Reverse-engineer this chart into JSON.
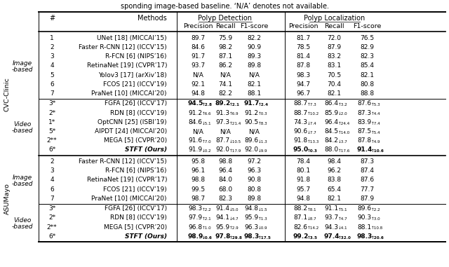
{
  "cvc_image_rows": [
    [
      "1",
      "UNet [18] (MICCAI’15)",
      "89.7",
      "75.9",
      "82.2",
      "81.7",
      "72.0",
      "76.5"
    ],
    [
      "2",
      "Faster R-CNN [12] (ICCV’15)",
      "84.6",
      "98.2",
      "90.9",
      "78.5",
      "87.9",
      "82.9"
    ],
    [
      "3",
      "R-FCN [6] (NIPS’16)",
      "91.7",
      "87.1",
      "89.3",
      "81.4",
      "83.2",
      "82.3"
    ],
    [
      "4",
      "RetinaNet [19] (CVPR’17)",
      "93.7",
      "86.2",
      "89.8",
      "87.8",
      "83.1",
      "85.4"
    ],
    [
      "5",
      "Yolov3 [17] (arXiv’18)",
      "N/A",
      "N/A",
      "N/A",
      "98.3",
      "70.5",
      "82.1"
    ],
    [
      "6",
      "FCOS [21] (ICCV’19)",
      "92.1",
      "74.1",
      "82.1",
      "94.7",
      "70.4",
      "80.8"
    ],
    [
      "7",
      "PraNet [10] (MICCAI’20)",
      "94.8",
      "82.2",
      "88.1",
      "96.7",
      "82.1",
      "88.8"
    ]
  ],
  "cvc_video_rows": [
    [
      "3*",
      "FGFA [26] (ICCV’17)",
      "94.5|2.8|u",
      "89.2|2.1|u",
      "91.7|2.4|u",
      "88.7|7.3|u",
      "86.4|3.2|u",
      "87.6|5.3|u"
    ],
    [
      "2*",
      "RDN [8] (ICCV’19)",
      "91.2|6.6|u",
      "91.3|6.9|u",
      "91.2|0.3|u",
      "88.7|10.2|u",
      "85.9|2.0|d",
      "87.3|4.4|u"
    ],
    [
      "1*",
      "OptCNN [25] (ISBI’19)",
      "84.6|5.1|d",
      "97.3|21.4|u",
      "90.5|8.3|u",
      "74.3|7.4|d",
      "96.4|24.4|u",
      "83.9|7.4|u"
    ],
    [
      "5*",
      "AIPDT [24] (MICCAI’20)",
      "N/A",
      "N/A",
      "N/A",
      "90.6|7.7|d",
      "84.5|14.0|u",
      "87.5|5.4|u"
    ],
    [
      "2**",
      "MEGA [5] (CVPR’20)",
      "91.6|7.0|u",
      "87.7|10.5|d",
      "89.6|1.3|d",
      "91.8|13.3|u",
      "84.2|3.7|d",
      "87.8|4.9|u"
    ],
    [
      "6*",
      "STFT (Ours)",
      "91.9|0.2|d",
      "92.0|17.9|u",
      "92.0|9.9|d",
      "95.0|0.3|u",
      "88.0|17.6|u",
      "91.4|10.6|u"
    ]
  ],
  "asu_image_rows": [
    [
      "2",
      "Faster R-CNN [12] (ICCV’15)",
      "95.8",
      "98.8",
      "97.2",
      "78.4",
      "98.4",
      "87.3"
    ],
    [
      "3",
      "R-FCN [6] (NIPS’16)",
      "96.1",
      "96.4",
      "96.3",
      "80.1",
      "96.2",
      "87.4"
    ],
    [
      "4",
      "RetinaNet [19] (CVPR’17)",
      "98.8",
      "84.0",
      "90.8",
      "91.8",
      "83.8",
      "87.6"
    ],
    [
      "6",
      "FCOS [21] (ICCV’19)",
      "99.5",
      "68.0",
      "80.8",
      "95.7",
      "65.4",
      "77.7"
    ],
    [
      "7",
      "PraNet [10] (MICCAI’20)",
      "98.7",
      "82.3",
      "89.8",
      "94.8",
      "82.1",
      "87.9"
    ]
  ],
  "asu_video_rows": [
    [
      "3*",
      "FGFA [26] (ICCV’17)",
      "98.3|2.2|u",
      "91.4|5.0|d",
      "94.8|1.5|d",
      "88.2|8.1|u",
      "91.1|5.1|u",
      "89.6|2.2|u"
    ],
    [
      "2*",
      "RDN [8] (ICCV’19)",
      "97.9|2.1|u",
      "94.1|4.7|d",
      "95.9|1.3|u",
      "87.1|8.7|d",
      "93.7|4.7|u",
      "90.3|3.0|u"
    ],
    [
      "2**",
      "MEGA [5] (CVPR’20)",
      "96.8|1.0|u",
      "95.9|2.9|u",
      "96.3|0.9|d",
      "82.6|14.2|u",
      "94.3|4.1|d",
      "88.1|10.8|u"
    ],
    [
      "6*",
      "STFT (Ours)",
      "98.9|0.6|d",
      "97.8|29.8|u",
      "98.3|17.5|u",
      "99.2|3.5|u",
      "97.4|32.0|u",
      "98.3|20.6|u"
    ]
  ],
  "cvc_vid_bold": {
    "0": [
      0,
      1,
      2
    ],
    "5": [
      3,
      5
    ]
  },
  "asu_vid_bold": {
    "3": [
      0,
      1,
      2,
      3,
      4,
      5
    ]
  },
  "bg_color": "#ffffff"
}
